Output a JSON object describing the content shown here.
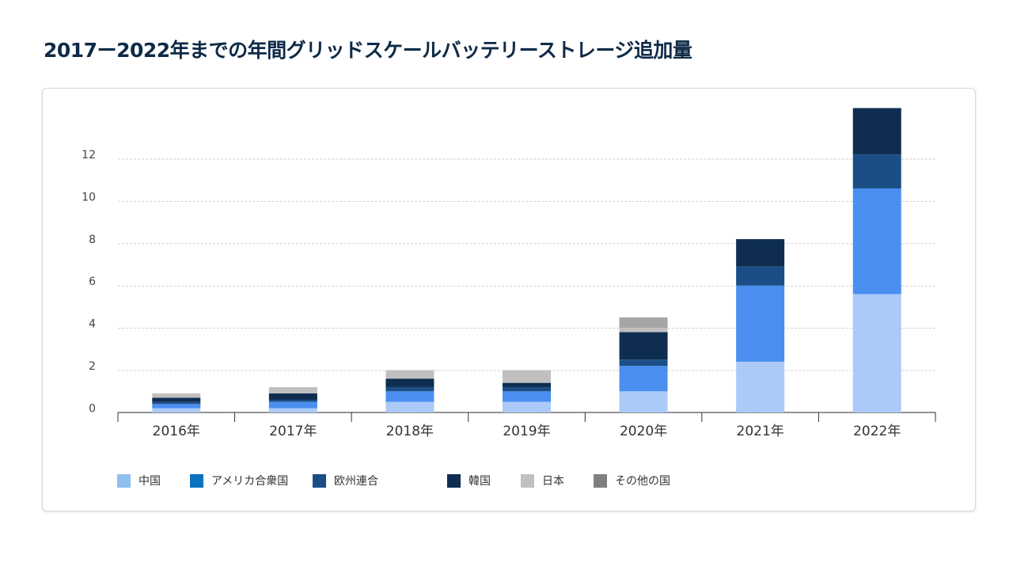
{
  "page": {
    "title": "2017ー2022年までの年間グリッドスケールバッテリーストレージ追加量"
  },
  "chart_data": {
    "type": "bar",
    "stacked": true,
    "title": "2017ー2022年までの年間グリッドスケールバッテリーストレージ追加量",
    "categories": [
      "2016年",
      "2017年",
      "2018年",
      "2019年",
      "2020年",
      "2021年",
      "2022年"
    ],
    "y_tick_labels": [
      "0",
      "2",
      "4",
      "6",
      "8",
      "10",
      "12"
    ],
    "grid": true,
    "legend_position": "bottom",
    "series": [
      {
        "name": "中国",
        "legend_color": "#8fbfec",
        "bar_color": "#abcaf7",
        "values": [
          0.2,
          0.2,
          0.5,
          0.5,
          1.0,
          2.4,
          5.6
        ]
      },
      {
        "name": "アメリカ合衆国",
        "legend_color": "#0b72c0",
        "bar_color": "#4a8ff0",
        "values": [
          0.2,
          0.3,
          0.5,
          0.5,
          1.2,
          3.6,
          5.0
        ]
      },
      {
        "name": "欧州連合",
        "legend_color": "#1b4e86",
        "bar_color": "#1b4e86",
        "values": [
          0.1,
          0.1,
          0.2,
          0.2,
          0.3,
          0.9,
          1.6
        ]
      },
      {
        "name": "韓国",
        "legend_color": "#0e2d50",
        "bar_color": "#0e2d50",
        "values": [
          0.2,
          0.3,
          0.4,
          0.2,
          1.3,
          1.3,
          2.2
        ]
      },
      {
        "name": "日本",
        "legend_color": "#c0c0c0",
        "bar_color": "#c0c0c0",
        "values": [
          0.2,
          0.3,
          0.4,
          0.6,
          0.2,
          0.0,
          0.0
        ]
      },
      {
        "name": "その他の国",
        "legend_color": "#7f7f7f",
        "bar_color": "#a6a6a6",
        "values": [
          0.0,
          0.0,
          0.0,
          0.0,
          0.5,
          0.0,
          0.0
        ]
      }
    ]
  }
}
